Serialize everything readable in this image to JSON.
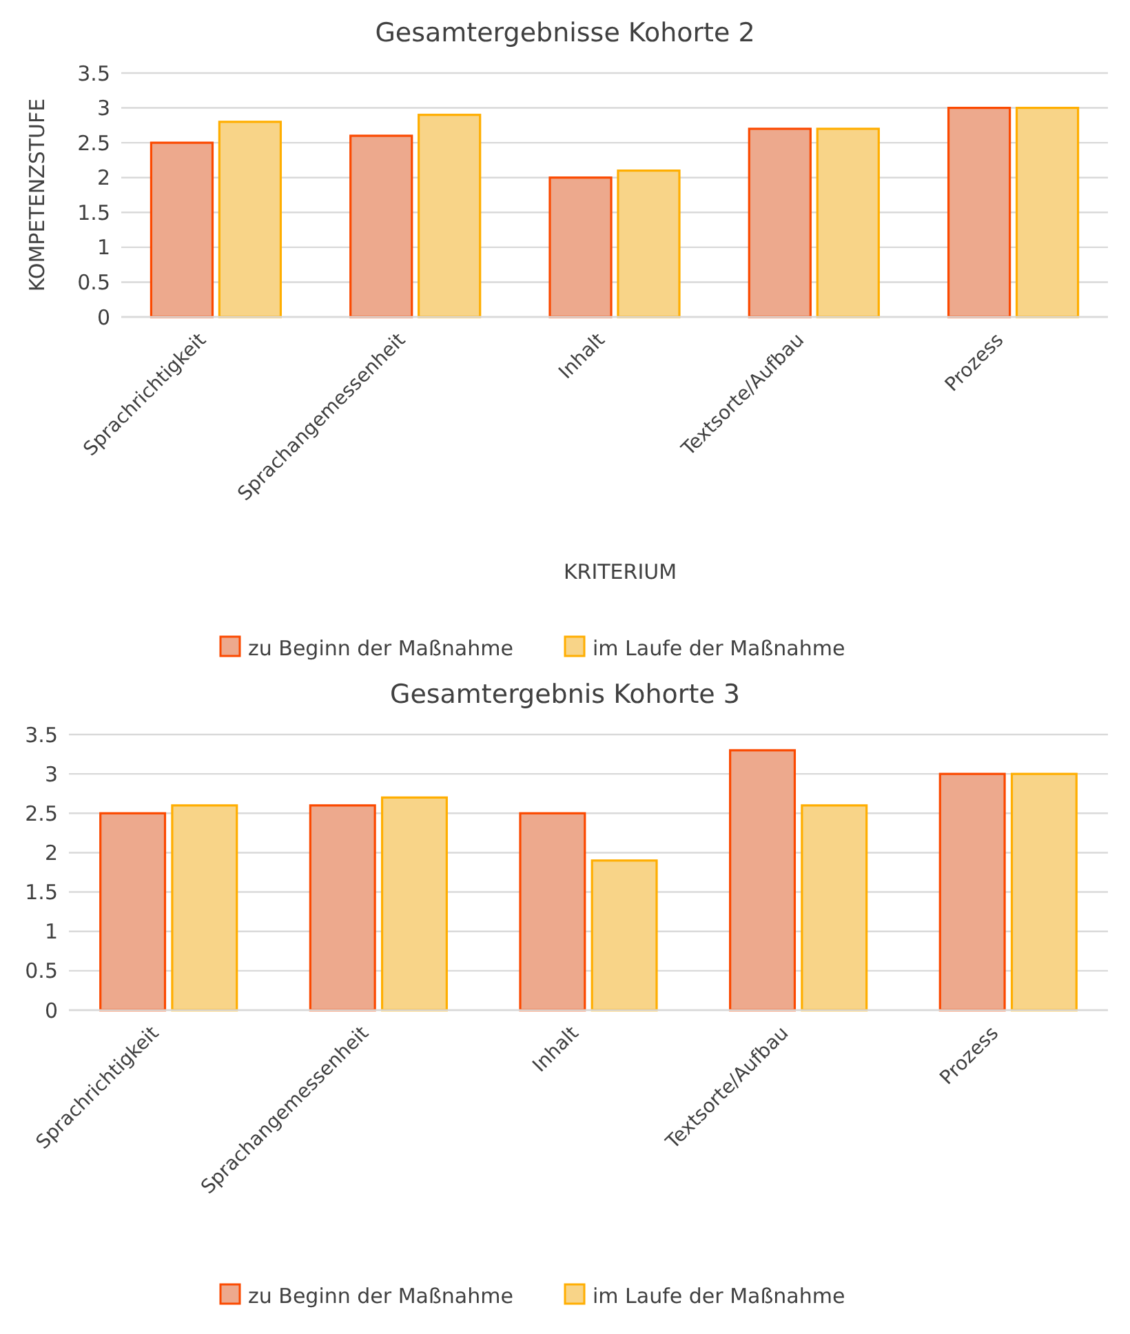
{
  "chart_data": [
    {
      "type": "bar",
      "title": "Gesamtergebnisse Kohorte 2",
      "xlabel": "KRITERIUM",
      "ylabel": "KOMPETENZSTUFE",
      "categories": [
        "Sprachrichtigkeit",
        "Sprachangemessenheit",
        "Inhalt",
        "Textsorte/Aufbau",
        "Prozess"
      ],
      "series": [
        {
          "name": "zu Beginn der Maßnahme",
          "color": "#eda98d",
          "values": [
            2.5,
            2.6,
            2.0,
            2.7,
            3.0
          ]
        },
        {
          "name": "im Laufe der Maßnahme",
          "color": "#f8d488",
          "values": [
            2.8,
            2.9,
            2.1,
            2.7,
            3.0
          ]
        }
      ],
      "ylim": [
        0,
        3.5
      ],
      "yticks": [
        0,
        0.5,
        1,
        1.5,
        2,
        2.5,
        3,
        3.5
      ],
      "grid": "y",
      "legend": "bottom"
    },
    {
      "type": "bar",
      "title": "Gesamtergebnis Kohorte 3",
      "categories": [
        "Sprachrichtigkeit",
        "Sprachangemessenheit",
        "Inhalt",
        "Textsorte/Aufbau",
        "Prozess"
      ],
      "series": [
        {
          "name": "zu Beginn der Maßnahme",
          "color": "#eda98d",
          "values": [
            2.5,
            2.6,
            2.5,
            3.3,
            3.0
          ]
        },
        {
          "name": "im Laufe der Maßnahme",
          "color": "#f8d488",
          "values": [
            2.6,
            2.7,
            1.9,
            2.6,
            3.0
          ]
        }
      ],
      "ylim": [
        0,
        3.5
      ],
      "yticks": [
        0,
        0.5,
        1,
        1.5,
        2,
        2.5,
        3,
        3.5
      ],
      "grid": "y",
      "legend": "bottom"
    }
  ]
}
